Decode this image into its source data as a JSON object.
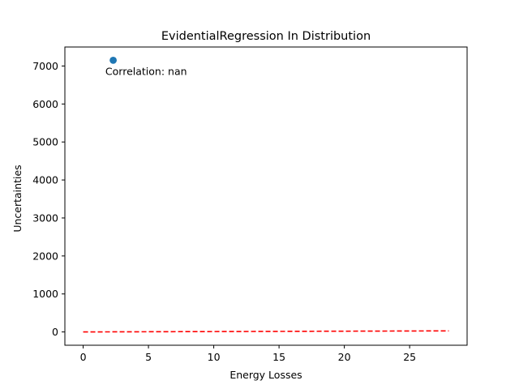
{
  "chart_data": {
    "type": "scatter",
    "title": "EvidentialRegression In Distribution",
    "xlabel": "Energy Losses",
    "ylabel": "Uncertainties",
    "xlim": [
      -1.4,
      29.4
    ],
    "ylim": [
      -350,
      7500
    ],
    "xticks": [
      0,
      5,
      10,
      15,
      20,
      25
    ],
    "yticks": [
      0,
      1000,
      2000,
      3000,
      4000,
      5000,
      6000,
      7000
    ],
    "grid": false,
    "series": [
      {
        "kind": "points",
        "color": "#1f77b4",
        "points": [
          {
            "x": 2.3,
            "y": 7150
          }
        ]
      },
      {
        "kind": "dashed-line",
        "color": "#ff0000",
        "points": [
          {
            "x": 0,
            "y": 0
          },
          {
            "x": 28,
            "y": 28
          }
        ]
      }
    ],
    "annotation": "Correlation: nan",
    "annotation_anchor": {
      "x": 1.7,
      "y": 6760
    }
  }
}
